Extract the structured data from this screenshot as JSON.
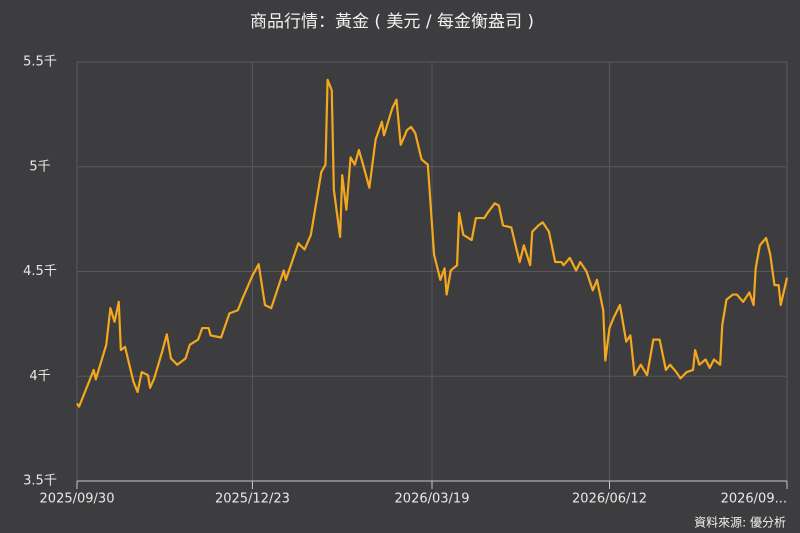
{
  "chart_data": {
    "type": "line",
    "title": "商品行情：黃金 ( 美元 / 每金衡盎司 )",
    "source": "資料來源: 優分析",
    "color": "#f4a81d",
    "grid": true,
    "ylim": [
      3500,
      5500
    ],
    "yticks": [
      {
        "value": 3500,
        "label": "3.5千"
      },
      {
        "value": 4000,
        "label": "4千"
      },
      {
        "value": 4500,
        "label": "4.5千"
      },
      {
        "value": 5000,
        "label": "5千"
      },
      {
        "value": 5500,
        "label": "5.5千"
      }
    ],
    "xlim": [
      "2025/09/30",
      "2026/09/05"
    ],
    "xticks": [
      "2025/09/30",
      "2025/12/23",
      "2026/03/19",
      "2026/06/12",
      {
        "value": "2026/09/05",
        "label": "2026/09..."
      }
    ],
    "x": [
      "2025/09/30",
      "2025/10/01",
      "2025/10/08",
      "2025/10/09",
      "2025/10/14",
      "2025/10/16",
      "2025/10/18",
      "2025/10/20",
      "2025/10/21",
      "2025/10/23",
      "2025/10/27",
      "2025/10/29",
      "2025/10/31",
      "2025/11/03",
      "2025/11/04",
      "2025/11/06",
      "2025/11/10",
      "2025/11/12",
      "2025/11/14",
      "2025/11/17",
      "2025/11/21",
      "2025/11/23",
      "2025/11/27",
      "2025/11/29",
      "2025/12/02",
      "2025/12/03",
      "2025/12/08",
      "2025/12/12",
      "2025/12/16",
      "2025/12/18",
      "2025/12/23",
      "2025/12/26",
      "2025/12/29",
      "2026/01/01",
      "2026/01/07",
      "2026/01/08",
      "2026/01/14",
      "2026/01/17",
      "2026/01/20",
      "2026/01/23",
      "2026/01/25",
      "2026/01/27",
      "2026/01/28",
      "2026/01/30",
      "2026/01/31",
      "2026/02/03",
      "2026/02/04",
      "2026/02/06",
      "2026/02/08",
      "2026/02/10",
      "2026/02/12",
      "2026/02/14",
      "2026/02/17",
      "2026/02/20",
      "2026/02/23",
      "2026/02/24",
      "2026/02/28",
      "2026/03/02",
      "2026/03/04",
      "2026/03/06",
      "2026/03/07",
      "2026/03/09",
      "2026/03/11",
      "2026/03/14",
      "2026/03/17",
      "2026/03/20",
      "2026/03/23",
      "2026/03/25",
      "2026/03/26",
      "2026/03/28",
      "2026/03/31",
      "2026/04/01",
      "2026/04/03",
      "2026/04/07",
      "2026/04/09",
      "2026/04/13",
      "2026/04/15",
      "2026/04/18",
      "2026/04/20",
      "2026/04/22",
      "2026/04/26",
      "2026/04/28",
      "2026/04/30",
      "2026/05/02",
      "2026/05/05",
      "2026/05/06",
      "2026/05/09",
      "2026/05/11",
      "2026/05/14",
      "2026/05/17",
      "2026/05/20",
      "2026/05/21",
      "2026/05/24",
      "2026/05/27",
      "2026/05/29",
      "2026/06/01",
      "2026/06/04",
      "2026/06/06",
      "2026/06/09",
      "2026/06/10",
      "2026/06/12",
      "2026/06/14",
      "2026/06/17",
      "2026/06/20",
      "2026/06/22",
      "2026/06/24",
      "2026/06/27",
      "2026/06/30",
      "2026/07/03",
      "2026/07/06",
      "2026/07/09",
      "2026/07/11",
      "2026/07/14",
      "2026/07/16",
      "2026/07/19",
      "2026/07/22",
      "2026/07/23",
      "2026/07/25",
      "2026/07/28",
      "2026/07/30",
      "2026/08/01",
      "2026/08/04",
      "2026/08/05",
      "2026/08/07",
      "2026/08/10",
      "2026/08/12",
      "2026/08/15",
      "2026/08/18",
      "2026/08/20",
      "2026/08/21",
      "2026/08/23",
      "2026/08/26",
      "2026/08/28",
      "2026/08/30",
      "2026/09/01",
      "2026/09/02",
      "2026/09/05"
    ],
    "values": [
      3870,
      3855,
      4030,
      3985,
      4150,
      4325,
      4260,
      4355,
      4125,
      4140,
      3975,
      3925,
      4020,
      4005,
      3945,
      3990,
      4125,
      4200,
      4085,
      4055,
      4085,
      4150,
      4175,
      4230,
      4230,
      4195,
      4185,
      4300,
      4315,
      4365,
      4480,
      4535,
      4340,
      4325,
      4505,
      4460,
      4635,
      4605,
      4675,
      4855,
      4975,
      5010,
      5415,
      5365,
      4890,
      4665,
      4960,
      4795,
      5045,
      5010,
      5080,
      5010,
      4900,
      5130,
      5215,
      5150,
      5280,
      5320,
      5105,
      5150,
      5175,
      5190,
      5160,
      5035,
      5010,
      4580,
      4460,
      4515,
      4390,
      4505,
      4530,
      4780,
      4675,
      4650,
      4755,
      4755,
      4785,
      4825,
      4815,
      4720,
      4710,
      4625,
      4545,
      4625,
      4530,
      4690,
      4720,
      4735,
      4690,
      4545,
      4545,
      4530,
      4565,
      4505,
      4545,
      4500,
      4410,
      4460,
      4315,
      4075,
      4230,
      4280,
      4340,
      4165,
      4195,
      4005,
      4055,
      4005,
      4175,
      4175,
      4030,
      4055,
      4020,
      3990,
      4020,
      4030,
      4125,
      4055,
      4080,
      4040,
      4080,
      4055,
      4245,
      4365,
      4390,
      4390,
      4355,
      4400,
      4340,
      4515,
      4625,
      4660,
      4580,
      4435,
      4435,
      4340,
      4470
    ]
  }
}
